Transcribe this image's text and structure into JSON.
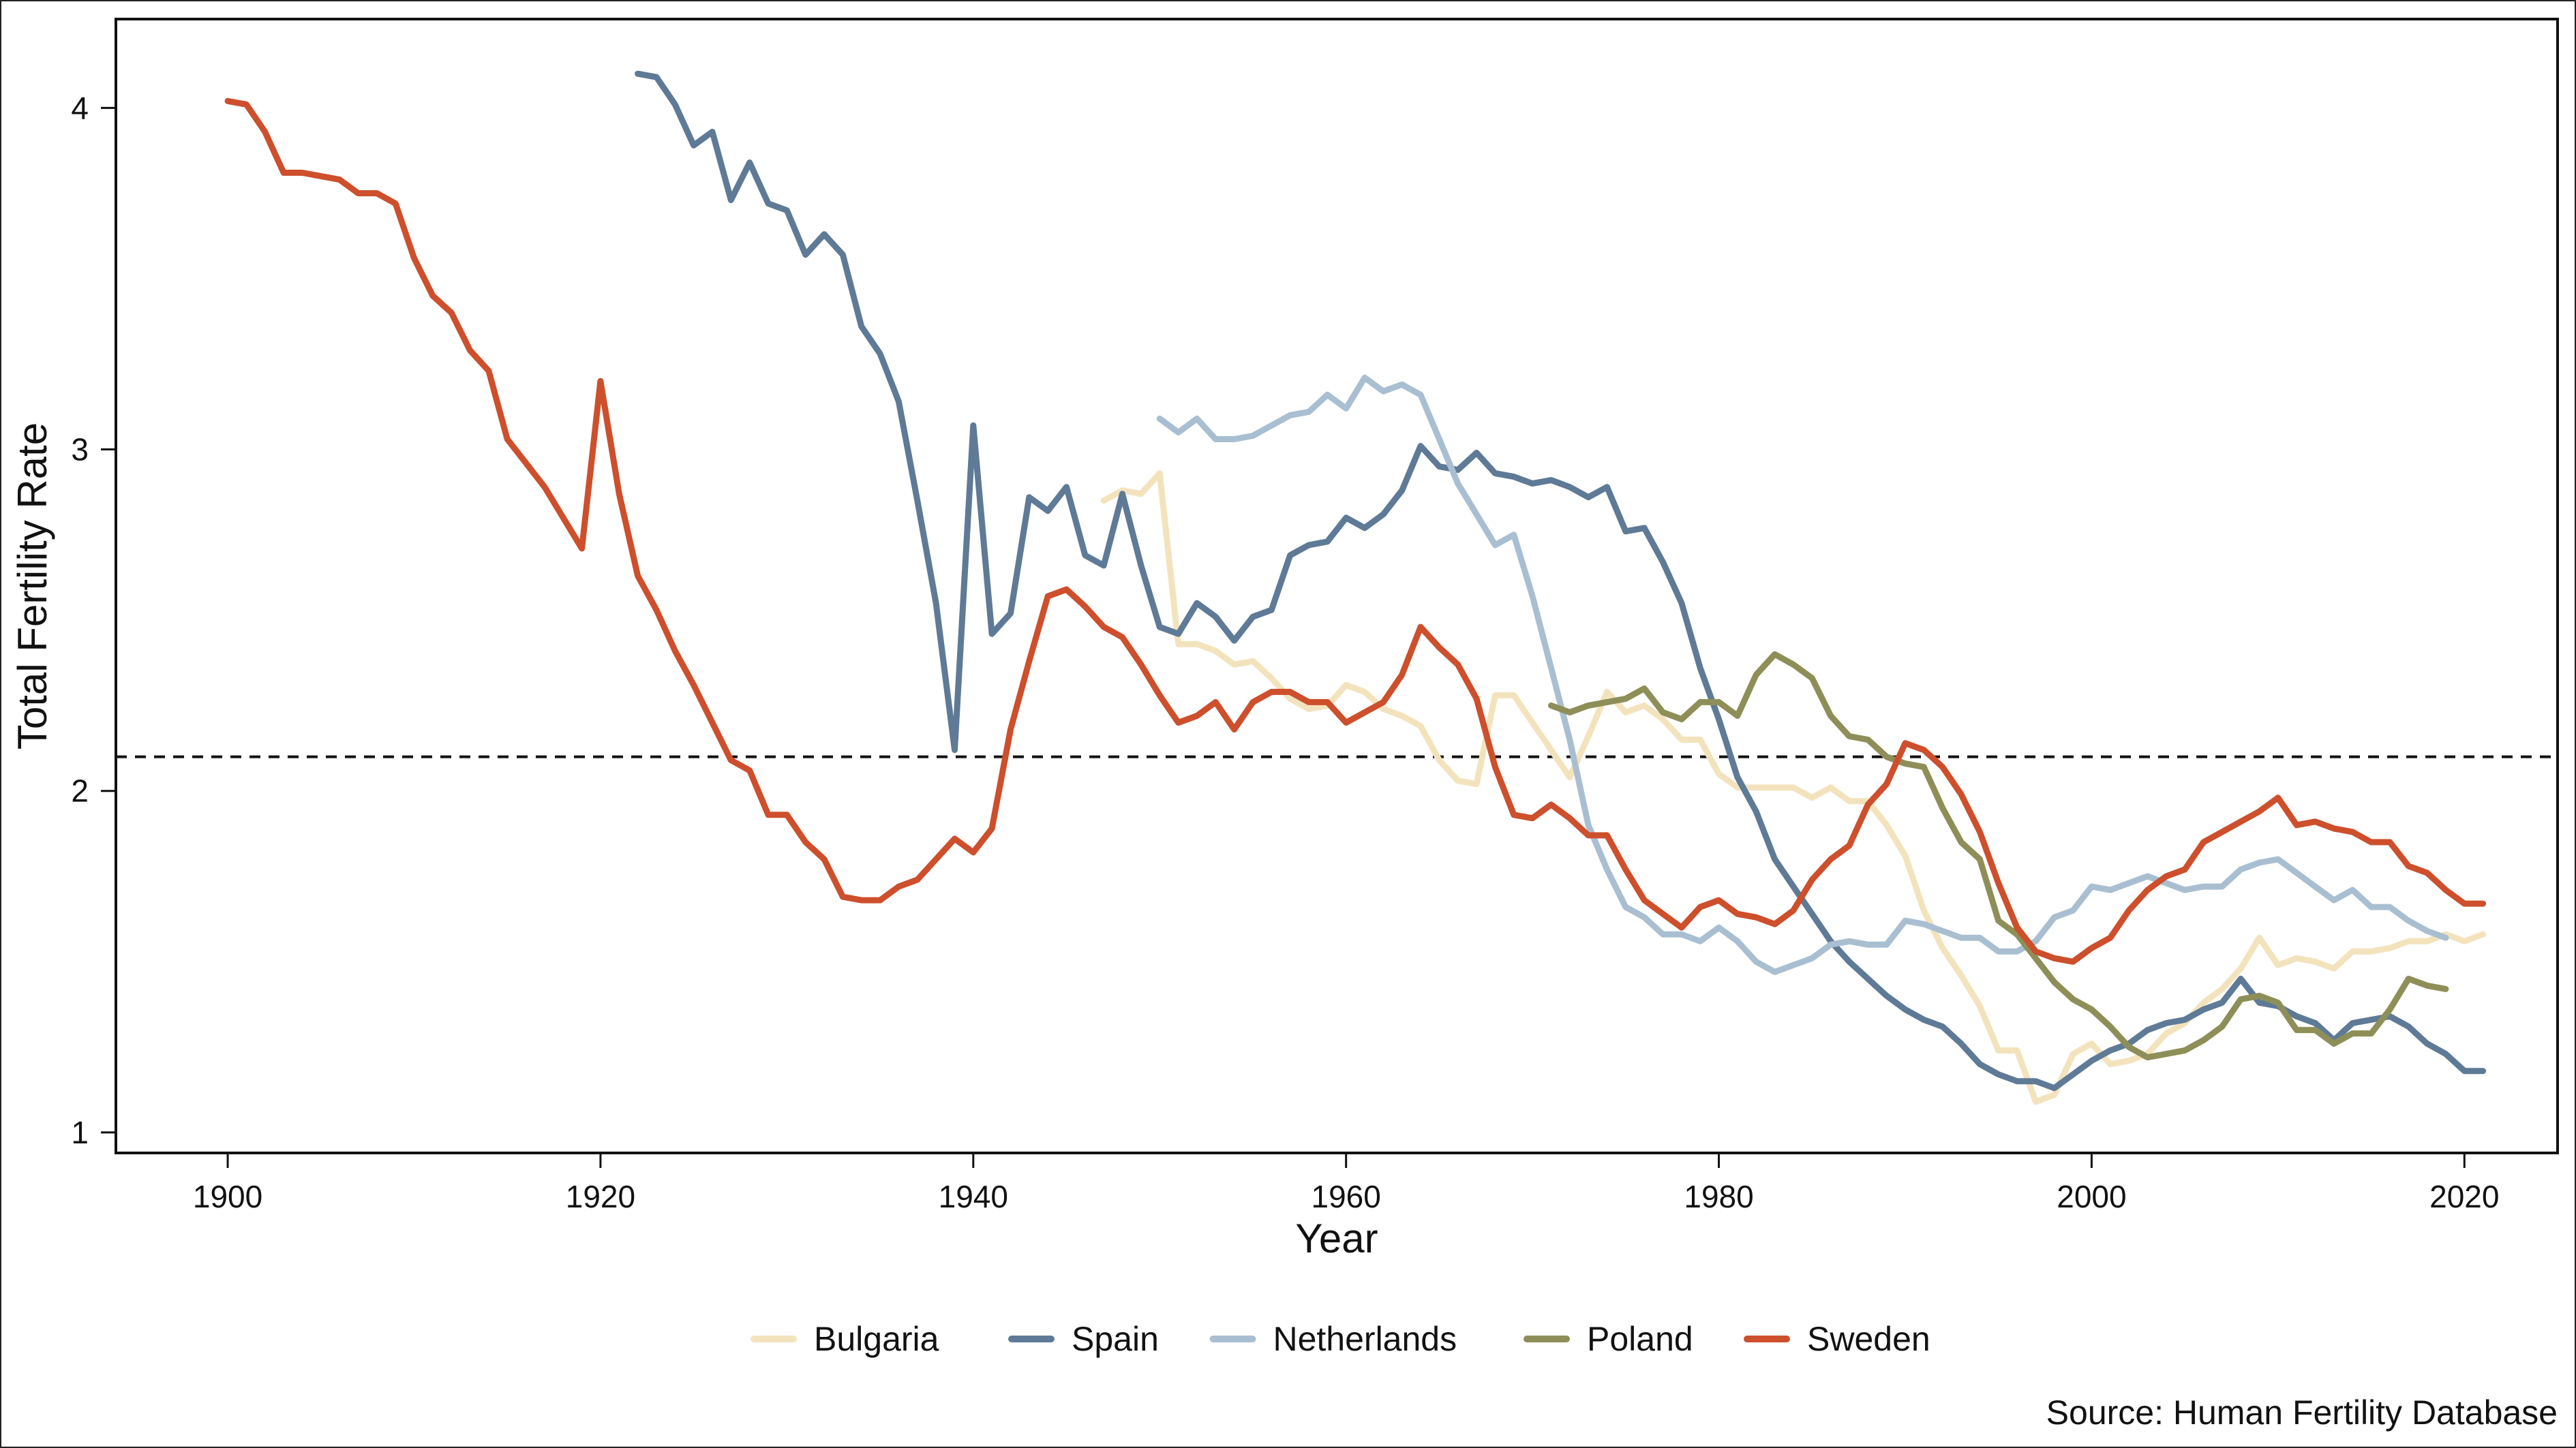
{
  "chart_data": {
    "type": "line",
    "title": "",
    "xlabel": "Year",
    "ylabel": "Total Fertility Rate",
    "xlim": [
      1894,
      2025
    ],
    "ylim": [
      0.94,
      4.26
    ],
    "xticks": [
      1900,
      1920,
      1940,
      1960,
      1980,
      2000,
      2020
    ],
    "yticks": [
      1,
      2,
      3,
      4
    ],
    "reference_line": {
      "y": 2.1,
      "style": "dashed"
    },
    "legend_position": "bottom",
    "source": "Source: Human Fertility Database",
    "grid": false,
    "series": [
      {
        "name": "Bulgaria",
        "color": "#f3e3bd",
        "x": [
          1947,
          1948,
          1949,
          1950,
          1951,
          1952,
          1953,
          1954,
          1955,
          1956,
          1957,
          1958,
          1959,
          1960,
          1961,
          1962,
          1963,
          1964,
          1965,
          1966,
          1967,
          1968,
          1969,
          1970,
          1971,
          1972,
          1973,
          1974,
          1975,
          1976,
          1977,
          1978,
          1979,
          1980,
          1981,
          1982,
          1983,
          1984,
          1985,
          1986,
          1987,
          1988,
          1989,
          1990,
          1991,
          1992,
          1993,
          1994,
          1995,
          1996,
          1997,
          1998,
          1999,
          2000,
          2001,
          2002,
          2003,
          2004,
          2005,
          2006,
          2007,
          2008,
          2009,
          2010,
          2011,
          2012,
          2013,
          2014,
          2015,
          2016,
          2017,
          2018,
          2019,
          2020,
          2021
        ],
        "y": [
          2.85,
          2.88,
          2.87,
          2.93,
          2.43,
          2.43,
          2.41,
          2.37,
          2.38,
          2.33,
          2.27,
          2.24,
          2.25,
          2.31,
          2.29,
          2.24,
          2.22,
          2.19,
          2.09,
          2.03,
          2.02,
          2.28,
          2.28,
          2.2,
          2.12,
          2.04,
          2.16,
          2.29,
          2.23,
          2.25,
          2.21,
          2.15,
          2.15,
          2.05,
          2.01,
          2.01,
          2.01,
          2.01,
          1.98,
          2.01,
          1.97,
          1.97,
          1.9,
          1.81,
          1.65,
          1.54,
          1.46,
          1.37,
          1.24,
          1.24,
          1.09,
          1.11,
          1.23,
          1.26,
          1.2,
          1.21,
          1.23,
          1.29,
          1.32,
          1.38,
          1.42,
          1.48,
          1.57,
          1.49,
          1.51,
          1.5,
          1.48,
          1.53,
          1.53,
          1.54,
          1.56,
          1.56,
          1.58,
          1.56,
          1.58
        ]
      },
      {
        "name": "Spain",
        "color": "#5e7a96",
        "x": [
          1922,
          1923,
          1924,
          1925,
          1926,
          1927,
          1928,
          1929,
          1930,
          1931,
          1932,
          1933,
          1934,
          1935,
          1936,
          1937,
          1938,
          1939,
          1940,
          1941,
          1942,
          1943,
          1944,
          1945,
          1946,
          1947,
          1948,
          1949,
          1950,
          1951,
          1952,
          1953,
          1954,
          1955,
          1956,
          1957,
          1958,
          1959,
          1960,
          1961,
          1962,
          1963,
          1964,
          1965,
          1966,
          1967,
          1968,
          1969,
          1970,
          1971,
          1972,
          1973,
          1974,
          1975,
          1976,
          1977,
          1978,
          1979,
          1980,
          1981,
          1982,
          1983,
          1984,
          1985,
          1986,
          1987,
          1988,
          1989,
          1990,
          1991,
          1992,
          1993,
          1994,
          1995,
          1996,
          1997,
          1998,
          1999,
          2000,
          2001,
          2002,
          2003,
          2004,
          2005,
          2006,
          2007,
          2008,
          2009,
          2010,
          2011,
          2012,
          2013,
          2014,
          2015,
          2016,
          2017,
          2018,
          2019,
          2020,
          2021
        ],
        "y": [
          4.1,
          4.09,
          4.01,
          3.89,
          3.93,
          3.73,
          3.84,
          3.72,
          3.7,
          3.57,
          3.63,
          3.57,
          3.36,
          3.28,
          3.14,
          2.85,
          2.55,
          2.12,
          3.07,
          2.46,
          2.52,
          2.86,
          2.82,
          2.89,
          2.69,
          2.66,
          2.87,
          2.66,
          2.48,
          2.46,
          2.55,
          2.51,
          2.44,
          2.51,
          2.53,
          2.69,
          2.72,
          2.73,
          2.8,
          2.77,
          2.81,
          2.88,
          3.01,
          2.95,
          2.94,
          2.99,
          2.93,
          2.92,
          2.9,
          2.91,
          2.89,
          2.86,
          2.89,
          2.76,
          2.77,
          2.67,
          2.55,
          2.36,
          2.21,
          2.04,
          1.94,
          1.8,
          1.72,
          1.64,
          1.56,
          1.5,
          1.45,
          1.4,
          1.36,
          1.33,
          1.31,
          1.26,
          1.2,
          1.17,
          1.15,
          1.15,
          1.13,
          1.17,
          1.21,
          1.24,
          1.26,
          1.3,
          1.32,
          1.33,
          1.36,
          1.38,
          1.45,
          1.38,
          1.37,
          1.34,
          1.32,
          1.27,
          1.32,
          1.33,
          1.34,
          1.31,
          1.26,
          1.23,
          1.18,
          1.18
        ]
      },
      {
        "name": "Netherlands",
        "color": "#a9bfd1",
        "x": [
          1950,
          1951,
          1952,
          1953,
          1954,
          1955,
          1956,
          1957,
          1958,
          1959,
          1960,
          1961,
          1962,
          1963,
          1964,
          1965,
          1966,
          1967,
          1968,
          1969,
          1970,
          1971,
          1972,
          1973,
          1974,
          1975,
          1976,
          1977,
          1978,
          1979,
          1980,
          1981,
          1982,
          1983,
          1984,
          1985,
          1986,
          1987,
          1988,
          1989,
          1990,
          1991,
          1992,
          1993,
          1994,
          1995,
          1996,
          1997,
          1998,
          1999,
          2000,
          2001,
          2002,
          2003,
          2004,
          2005,
          2006,
          2007,
          2008,
          2009,
          2010,
          2011,
          2012,
          2013,
          2014,
          2015,
          2016,
          2017,
          2018,
          2019
        ],
        "y": [
          3.09,
          3.05,
          3.09,
          3.03,
          3.03,
          3.04,
          3.07,
          3.1,
          3.11,
          3.16,
          3.12,
          3.21,
          3.17,
          3.19,
          3.16,
          3.03,
          2.9,
          2.81,
          2.72,
          2.75,
          2.57,
          2.36,
          2.15,
          1.9,
          1.77,
          1.66,
          1.63,
          1.58,
          1.58,
          1.56,
          1.6,
          1.56,
          1.5,
          1.47,
          1.49,
          1.51,
          1.55,
          1.56,
          1.55,
          1.55,
          1.62,
          1.61,
          1.59,
          1.57,
          1.57,
          1.53,
          1.53,
          1.56,
          1.63,
          1.65,
          1.72,
          1.71,
          1.73,
          1.75,
          1.73,
          1.71,
          1.72,
          1.72,
          1.77,
          1.79,
          1.8,
          1.76,
          1.72,
          1.68,
          1.71,
          1.66,
          1.66,
          1.62,
          1.59,
          1.57
        ]
      },
      {
        "name": "Poland",
        "color": "#8e8e58",
        "x": [
          1971,
          1972,
          1973,
          1974,
          1975,
          1976,
          1977,
          1978,
          1979,
          1980,
          1981,
          1982,
          1983,
          1984,
          1985,
          1986,
          1987,
          1988,
          1989,
          1990,
          1991,
          1992,
          1993,
          1994,
          1995,
          1996,
          1997,
          1998,
          1999,
          2000,
          2001,
          2002,
          2003,
          2004,
          2005,
          2006,
          2007,
          2008,
          2009,
          2010,
          2011,
          2012,
          2013,
          2014,
          2015,
          2016,
          2017,
          2018,
          2019
        ],
        "y": [
          2.25,
          2.23,
          2.25,
          2.26,
          2.27,
          2.3,
          2.23,
          2.21,
          2.26,
          2.26,
          2.22,
          2.34,
          2.4,
          2.37,
          2.33,
          2.22,
          2.16,
          2.15,
          2.1,
          2.08,
          2.07,
          1.95,
          1.85,
          1.8,
          1.62,
          1.58,
          1.51,
          1.44,
          1.39,
          1.36,
          1.31,
          1.25,
          1.22,
          1.23,
          1.24,
          1.27,
          1.31,
          1.39,
          1.4,
          1.38,
          1.3,
          1.3,
          1.26,
          1.29,
          1.29,
          1.36,
          1.45,
          1.43,
          1.42
        ]
      },
      {
        "name": "Sweden",
        "color": "#cd4f2c",
        "x": [
          1900,
          1901,
          1902,
          1903,
          1904,
          1905,
          1906,
          1907,
          1908,
          1909,
          1910,
          1911,
          1912,
          1913,
          1914,
          1915,
          1916,
          1917,
          1918,
          1919,
          1920,
          1921,
          1922,
          1923,
          1924,
          1925,
          1926,
          1927,
          1928,
          1929,
          1930,
          1931,
          1932,
          1933,
          1934,
          1935,
          1936,
          1937,
          1938,
          1939,
          1940,
          1941,
          1942,
          1943,
          1944,
          1945,
          1946,
          1947,
          1948,
          1949,
          1950,
          1951,
          1952,
          1953,
          1954,
          1955,
          1956,
          1957,
          1958,
          1959,
          1960,
          1961,
          1962,
          1963,
          1964,
          1965,
          1966,
          1967,
          1968,
          1969,
          1970,
          1971,
          1972,
          1973,
          1974,
          1975,
          1976,
          1977,
          1978,
          1979,
          1980,
          1981,
          1982,
          1983,
          1984,
          1985,
          1986,
          1987,
          1988,
          1989,
          1990,
          1991,
          1992,
          1993,
          1994,
          1995,
          1996,
          1997,
          1998,
          1999,
          2000,
          2001,
          2002,
          2003,
          2004,
          2005,
          2006,
          2007,
          2008,
          2009,
          2010,
          2011,
          2012,
          2013,
          2014,
          2015,
          2016,
          2017,
          2018,
          2019,
          2020,
          2021
        ],
        "y": [
          4.02,
          4.01,
          3.93,
          3.81,
          3.81,
          3.8,
          3.79,
          3.75,
          3.75,
          3.72,
          3.56,
          3.45,
          3.4,
          3.29,
          3.23,
          3.03,
          2.96,
          2.89,
          2.8,
          2.71,
          3.2,
          2.87,
          2.63,
          2.53,
          2.41,
          2.31,
          2.2,
          2.09,
          2.06,
          1.93,
          1.93,
          1.85,
          1.8,
          1.69,
          1.68,
          1.68,
          1.72,
          1.74,
          1.8,
          1.86,
          1.82,
          1.89,
          2.18,
          2.38,
          2.57,
          2.59,
          2.54,
          2.48,
          2.45,
          2.37,
          2.28,
          2.2,
          2.22,
          2.26,
          2.18,
          2.26,
          2.29,
          2.29,
          2.26,
          2.26,
          2.2,
          2.23,
          2.26,
          2.34,
          2.48,
          2.42,
          2.37,
          2.27,
          2.07,
          1.93,
          1.92,
          1.96,
          1.92,
          1.87,
          1.87,
          1.77,
          1.68,
          1.64,
          1.6,
          1.66,
          1.68,
          1.64,
          1.63,
          1.61,
          1.65,
          1.74,
          1.8,
          1.84,
          1.96,
          2.02,
          2.14,
          2.12,
          2.07,
          1.99,
          1.88,
          1.73,
          1.6,
          1.53,
          1.51,
          1.5,
          1.54,
          1.57,
          1.65,
          1.71,
          1.75,
          1.77,
          1.85,
          1.88,
          1.91,
          1.94,
          1.98,
          1.9,
          1.91,
          1.89,
          1.88,
          1.85,
          1.85,
          1.78,
          1.76,
          1.71,
          1.67,
          1.67
        ]
      }
    ]
  }
}
